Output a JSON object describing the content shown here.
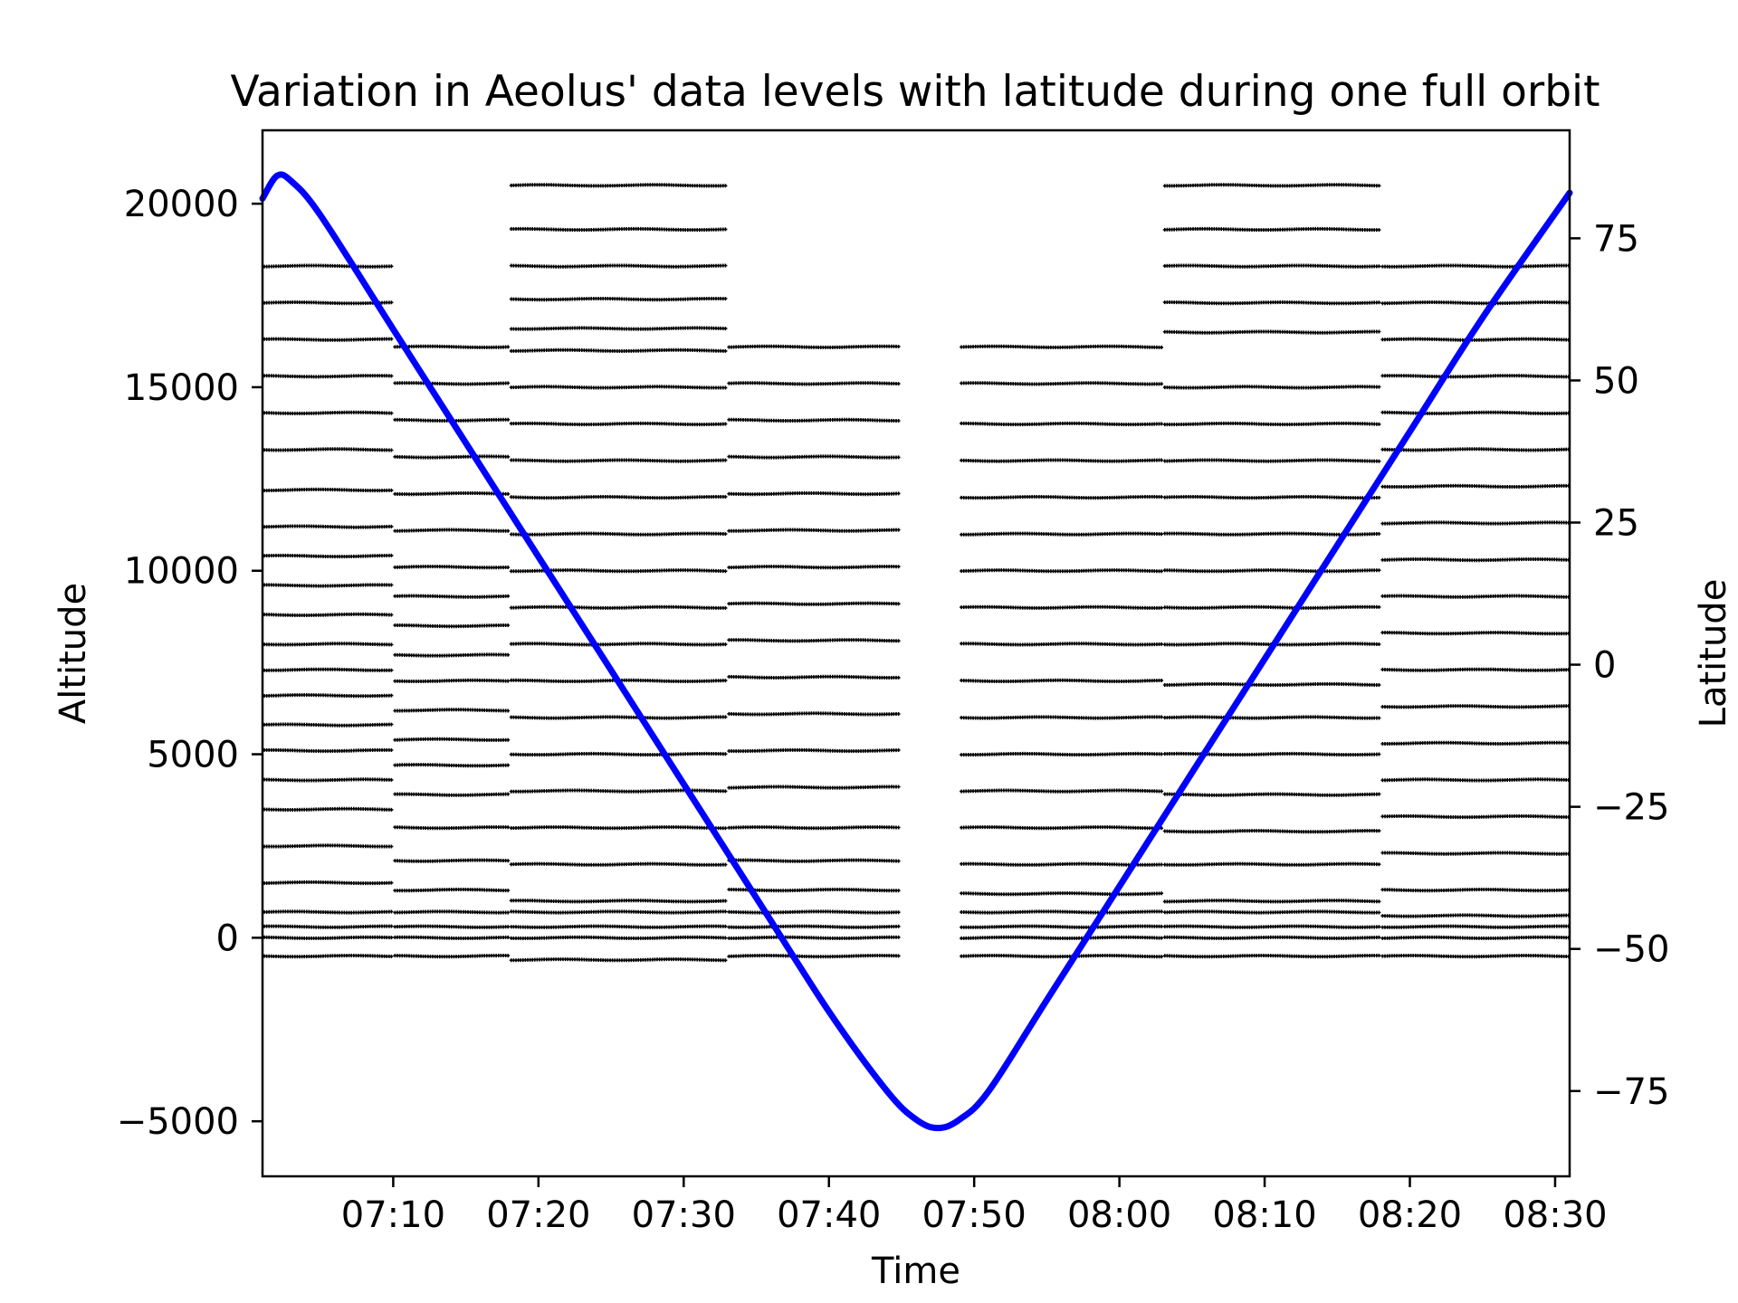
{
  "chart_data": {
    "type": "scatter",
    "title": "Variation in Aeolus' data levels with latitude during one full orbit",
    "xlabel": "Time",
    "ylabel": "Altitude",
    "y2label": "Latitude",
    "xlim": [
      "07:01",
      "08:31"
    ],
    "ylim": [
      -6500,
      22000
    ],
    "y2lim": [
      -90,
      94
    ],
    "x_ticks": [
      "07:10",
      "07:20",
      "07:30",
      "07:40",
      "07:50",
      "08:00",
      "08:10",
      "08:20",
      "08:30"
    ],
    "y_ticks": [
      -5000,
      0,
      5000,
      10000,
      15000,
      20000
    ],
    "y_tick_labels": [
      "−5000",
      "0",
      "5000",
      "10000",
      "15000",
      "20000"
    ],
    "y2_ticks": [
      -75,
      -50,
      -25,
      0,
      25,
      50,
      75
    ],
    "y2_tick_labels": [
      "−75",
      "−50",
      "−25",
      "0",
      "25",
      "50",
      "75"
    ],
    "grid": false,
    "series": [
      {
        "type": "scatter",
        "color": "#000000",
        "marker": "+",
        "segments": [
          {
            "x_start": "07:01",
            "x_end": "07:10",
            "altitudes": [
              18300,
              17300,
              16300,
              15300,
              14300,
              13300,
              12200,
              11200,
              10400,
              9600,
              8800,
              8000,
              7300,
              6600,
              5800,
              5100,
              4300,
              3500,
              2500,
              1500,
              700,
              300,
              0,
              -500
            ]
          },
          {
            "x_start": "07:10",
            "x_end": "07:18",
            "altitudes": [
              16100,
              15100,
              14100,
              13100,
              12100,
              11100,
              10100,
              9300,
              8500,
              7700,
              7000,
              6200,
              5400,
              4700,
              3900,
              3000,
              2100,
              1300,
              700,
              300,
              0,
              -500
            ]
          },
          {
            "x_start": "07:18",
            "x_end": "07:33",
            "altitudes": [
              20500,
              19300,
              18300,
              17400,
              16600,
              16000,
              15000,
              14000,
              13000,
              12000,
              11000,
              10000,
              9000,
              8000,
              7000,
              6000,
              5000,
              4000,
              3000,
              2000,
              1000,
              700,
              300,
              0,
              -600
            ]
          },
          {
            "x_start": "07:33",
            "x_end": "07:45",
            "altitudes": [
              16100,
              15100,
              14100,
              13100,
              12100,
              11100,
              10100,
              9100,
              8100,
              7100,
              6100,
              5100,
              4100,
              3000,
              2100,
              1300,
              700,
              300,
              0,
              -500
            ]
          },
          {
            "x_start": "07:49",
            "x_end": "08:03",
            "altitudes": [
              16100,
              15100,
              14000,
              13000,
              12000,
              11000,
              10000,
              9000,
              8000,
              7000,
              6000,
              5000,
              4000,
              3000,
              2000,
              1200,
              700,
              300,
              0,
              -500
            ]
          },
          {
            "x_start": "08:03",
            "x_end": "08:18",
            "altitudes": [
              20500,
              19300,
              18300,
              17300,
              16500,
              15000,
              14000,
              13000,
              12000,
              11000,
              10000,
              9000,
              8000,
              6900,
              6000,
              5000,
              3900,
              2900,
              2000,
              1000,
              700,
              300,
              0,
              -500
            ]
          },
          {
            "x_start": "08:18",
            "x_end": "08:31",
            "altitudes": [
              18300,
              17300,
              16300,
              15300,
              14300,
              13300,
              12300,
              11300,
              10300,
              9300,
              8300,
              7300,
              6300,
              5300,
              4300,
              3300,
              2300,
              1300,
              600,
              300,
              0,
              -500
            ]
          }
        ]
      },
      {
        "type": "line",
        "color": "#0000ff",
        "axis": "right",
        "x": [
          "07:01",
          "07:02",
          "07:03",
          "07:05",
          "07:10",
          "07:15",
          "07:20",
          "07:25",
          "07:30",
          "07:35",
          "07:40",
          "07:44",
          "07:46",
          "07:47.5",
          "07:49",
          "07:51",
          "07:55",
          "08:00",
          "08:05",
          "08:10",
          "08:15",
          "08:20",
          "08:25",
          "08:31"
        ],
        "y": [
          82,
          86,
          85,
          79,
          59,
          39,
          19,
          -1,
          -21,
          -41,
          -61,
          -75,
          -80,
          -81.5,
          -80,
          -75,
          -59,
          -39,
          -19,
          1,
          21,
          41,
          61,
          83
        ]
      }
    ]
  }
}
